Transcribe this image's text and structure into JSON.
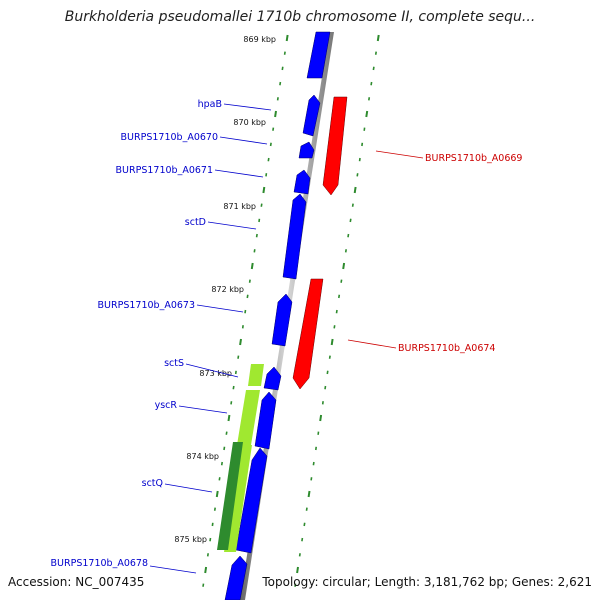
{
  "title": "Burkholderia pseudomallei 1710b chromosome II, complete sequ...",
  "accession": "Accession: NC_007435",
  "summary": "Topology: circular; Length: 3,181,762 bp; Genes: 2,621",
  "colors": {
    "forward_gene": "#0000ff",
    "reverse_gene": "#ff0000",
    "light_green": "#a0e830",
    "dark_green": "#2e8b2e",
    "backbone": "#999999",
    "tick": "#2e8b2e",
    "forward_label": "#0000cc",
    "reverse_label": "#cc0000"
  },
  "kbp_ticks": [
    "869 kbp",
    "870 kbp",
    "871 kbp",
    "872 kbp",
    "873 kbp",
    "874 kbp",
    "875 kbp"
  ],
  "forward_labels": [
    "hpaB",
    "BURPS1710b_A0670",
    "BURPS1710b_A0671",
    "sctD",
    "BURPS1710b_A0673",
    "sctS",
    "yscR",
    "sctQ",
    "BURPS1710b_A0678"
  ],
  "reverse_labels": [
    "BURPS1710b_A0669",
    "BURPS1710b_A0674"
  ]
}
